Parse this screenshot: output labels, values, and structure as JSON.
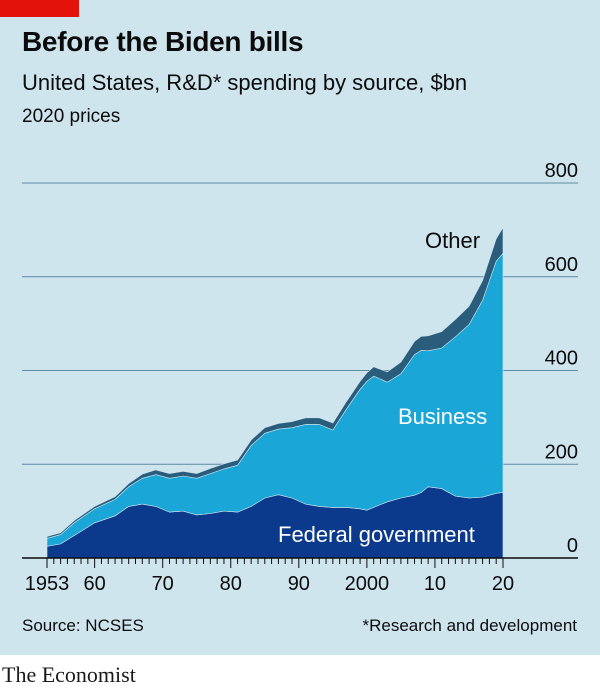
{
  "header": {
    "title": "Before the Biden bills",
    "subtitle": "United States, R&D* spending by source, $bn",
    "units": "2020 prices"
  },
  "footer": {
    "source": "Source: NCSES",
    "footnote": "*Research and development",
    "brand": "The Economist"
  },
  "colors": {
    "background": "#cfe5ee",
    "federal": "#0b3a8c",
    "business": "#1aa6d6",
    "other": "#2a5d7c",
    "gridline": "#5c8aa3",
    "brand_red": "#e3120b"
  },
  "chart_data": {
    "type": "area",
    "stacked": true,
    "ylim": [
      0,
      800
    ],
    "xlim": [
      1953,
      2020
    ],
    "yticks": [
      0,
      200,
      400,
      600,
      800
    ],
    "ytick_labels": [
      "0",
      "200",
      "400",
      "600",
      "800"
    ],
    "xticks": [
      1953,
      1960,
      1970,
      1980,
      1990,
      2000,
      2010,
      2020
    ],
    "xtick_labels": [
      "1953",
      "60",
      "70",
      "80",
      "90",
      "2000",
      "10",
      "20"
    ],
    "grid": true,
    "series_labels": [
      "Federal government",
      "Business",
      "Other"
    ],
    "x": [
      1953,
      1955,
      1957,
      1960,
      1963,
      1965,
      1967,
      1969,
      1971,
      1973,
      1975,
      1977,
      1979,
      1981,
      1983,
      1985,
      1987,
      1989,
      1991,
      1993,
      1995,
      1997,
      1999,
      2000,
      2001,
      2003,
      2005,
      2007,
      2008,
      2009,
      2011,
      2013,
      2015,
      2017,
      2019,
      2020
    ],
    "series": [
      {
        "name": "Federal government",
        "values": [
          25,
          30,
          48,
          75,
          90,
          110,
          115,
          110,
          98,
          100,
          92,
          95,
          100,
          98,
          110,
          128,
          135,
          128,
          115,
          110,
          108,
          108,
          105,
          102,
          108,
          120,
          128,
          134,
          140,
          152,
          148,
          132,
          128,
          130,
          138,
          140
        ]
      },
      {
        "name": "Business",
        "values": [
          17,
          20,
          27,
          30,
          35,
          42,
          55,
          68,
          72,
          75,
          78,
          85,
          90,
          100,
          130,
          138,
          140,
          150,
          170,
          175,
          165,
          210,
          255,
          275,
          280,
          255,
          265,
          300,
          303,
          290,
          300,
          340,
          370,
          420,
          495,
          510
        ]
      },
      {
        "name": "Other",
        "values": [
          4,
          4,
          5,
          5,
          6,
          7,
          9,
          10,
          10,
          10,
          10,
          11,
          11,
          11,
          12,
          12,
          12,
          13,
          14,
          14,
          15,
          16,
          17,
          18,
          20,
          22,
          25,
          28,
          30,
          32,
          35,
          37,
          39,
          42,
          48,
          55
        ]
      }
    ]
  }
}
